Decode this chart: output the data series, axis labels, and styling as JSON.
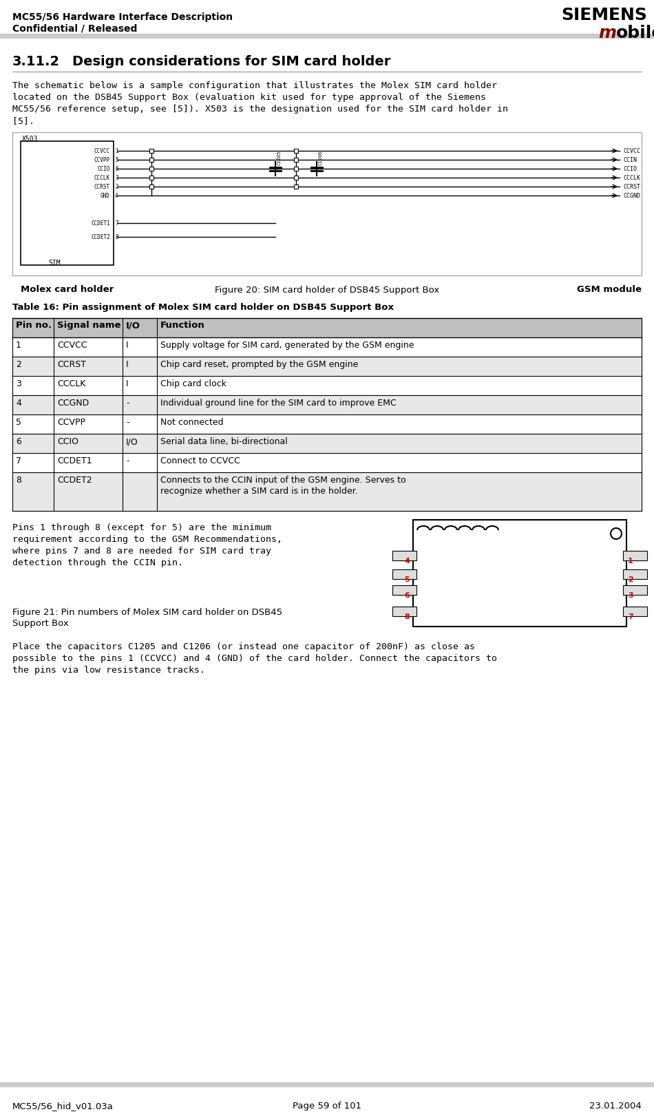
{
  "header_left_line1": "MC55/56 Hardware Interface Description",
  "header_left_line2": "Confidential / Released",
  "header_right_line1": "SIEMENS",
  "header_right_line2": "mobile",
  "footer_left": "MC55/56_hid_v01.03a",
  "footer_center": "Page 59 of 101",
  "footer_right": "23.01.2004",
  "section_title": "3.11.2   Design considerations for SIM card holder",
  "para1": "The schematic below is a sample configuration that illustrates the Molex SIM card holder\nlocated on the DSB45 Support Box (evaluation kit used for type approval of the Siemens\nMC55/56 reference setup, see [5]). X503 is the designation used for the SIM card holder in\n[5].",
  "fig20_caption": "Figure 20: SIM card holder of DSB45 Support Box",
  "table_title": "Table 16: Pin assignment of Molex SIM card holder on DSB45 Support Box",
  "table_headers": [
    "Pin no.",
    "Signal name",
    "I/O",
    "Function"
  ],
  "table_rows": [
    [
      "1",
      "CCVCC",
      "I",
      "Supply voltage for SIM card, generated by the GSM engine"
    ],
    [
      "2",
      "CCRST",
      "I",
      "Chip card reset, prompted by the GSM engine"
    ],
    [
      "3",
      "CCCLK",
      "I",
      "Chip card clock"
    ],
    [
      "4",
      "CCGND",
      "-",
      "Individual ground line for the SIM card to improve EMC"
    ],
    [
      "5",
      "CCVPP",
      "-",
      "Not connected"
    ],
    [
      "6",
      "CCIO",
      "I/O",
      "Serial data line, bi-directional"
    ],
    [
      "7",
      "CCDET1",
      "-",
      "Connect to CCVCC"
    ],
    [
      "8",
      "CCDET2",
      "",
      "Connects to the CCIN input of the GSM engine. Serves to\nrecognize whether a SIM card is in the holder."
    ]
  ],
  "para2_left": "Pins 1 through 8 (except for 5) are the minimum\nrequirement according to the GSM Recommendations,\nwhere pins 7 and 8 are needed for SIM card tray\ndetection through the CCIN pin.",
  "fig21_caption": "Figure 21: Pin numbers of Molex SIM card holder on DSB45\nSupport Box",
  "para3": "Place the capacitors C1205 and C1206 (or instead one capacitor of 200nF) as close as\npossible to the pins 1 (CCVCC) and 4 (GND) of the card holder. Connect the capacitors to\nthe pins via low resistance tracks.",
  "bg_color": "#ffffff",
  "header_bar_color": "#cccccc",
  "table_header_bg": "#c0c0c0",
  "table_row_alt": "#e8e8e8",
  "text_color": "#000000",
  "siemens_color": "#000000",
  "mobile_m_color": "#8b0000",
  "schematic_border": "#000000",
  "molex_label": "Molex card holder",
  "gsm_label": "GSM module"
}
